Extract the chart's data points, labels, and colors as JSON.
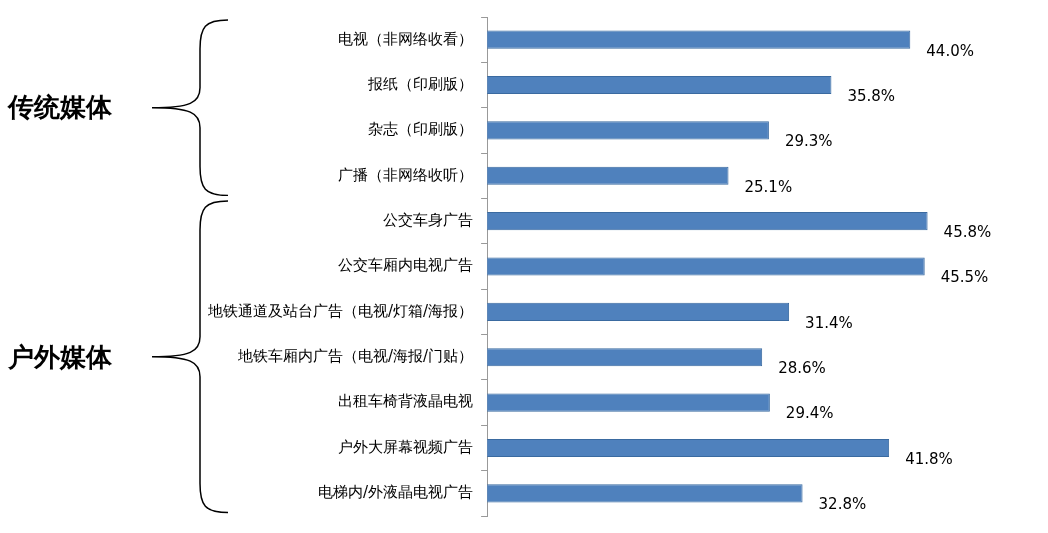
{
  "chart_data": {
    "type": "bar",
    "orientation": "horizontal",
    "categories": [
      "电视（非网络收看）",
      "报纸（印刷版）",
      "杂志（印刷版）",
      "广播（非网络收听）",
      "公交车身广告",
      "公交车厢内电视广告",
      "地铁通道及站台广告（电视/灯箱/海报）",
      "地铁车厢内广告（电视/海报/门贴）",
      "出租车椅背液晶电视",
      "户外大屏幕视频广告",
      "电梯内/外液晶电视广告"
    ],
    "values": [
      44.0,
      35.8,
      29.3,
      25.1,
      45.8,
      45.5,
      31.4,
      28.6,
      29.4,
      41.8,
      32.8
    ],
    "value_labels": [
      "44.0%",
      "35.8%",
      "29.3%",
      "25.1%",
      "45.8%",
      "45.5%",
      "31.4%",
      "28.6%",
      "29.4%",
      "41.8%",
      "32.8%"
    ],
    "color": "#4f81bd",
    "annotations": [
      "传统媒体",
      "户外媒体"
    ],
    "legend": false
  }
}
